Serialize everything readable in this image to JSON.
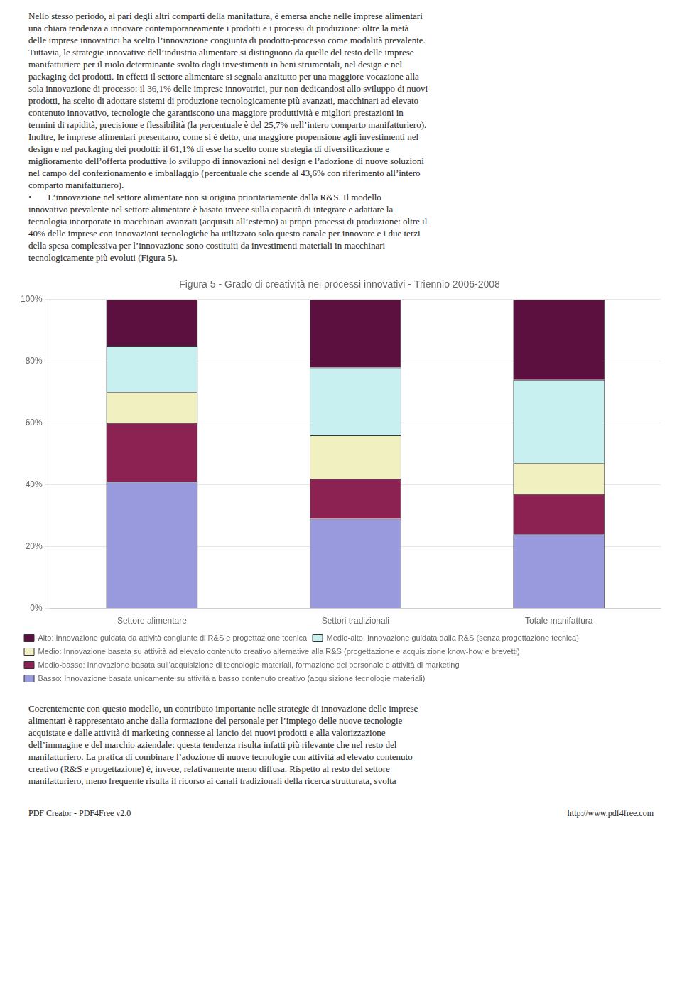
{
  "chart_data": {
    "type": "bar",
    "stacked": true,
    "title": "Figura 5 - Grado di creatività nei processi innovativi - Triennio 2006-2008",
    "categories": [
      "Settore alimentare",
      "Settori tradizionali",
      "Totale manifattura"
    ],
    "series": [
      {
        "name": "Alto: Innovazione guidata da attività congiunte di R&S e progettazione tecnica",
        "color": "#5C1040",
        "values": [
          15,
          22,
          26
        ]
      },
      {
        "name": "Medio-alto: Innovazione guidata dalla R&S (senza progettazione tecnica)",
        "color": "#C8F0F0",
        "values": [
          15,
          22,
          27
        ]
      },
      {
        "name": "Medio: Innovazione basata su attività ad elevato contenuto creativo alternative alla R&S (progettazione e acquisizione know-how e brevetti)",
        "color": "#F0F0C0",
        "values": [
          10,
          14,
          10
        ]
      },
      {
        "name": "Medio-basso: Innovazione basata sull’acquisizione di tecnologie materiali, formazione del personale e attività di marketing",
        "color": "#8B2252",
        "values": [
          19,
          13,
          13
        ]
      },
      {
        "name": "Basso: Innovazione basata unicamente su attività a basso contenuto creativo (acquisizione tecnologie materiali)",
        "color": "#9999DD",
        "values": [
          41,
          29,
          24
        ]
      }
    ],
    "ylim": [
      0,
      100
    ],
    "yticks": [
      {
        "value": 0,
        "label": "0%"
      },
      {
        "value": 20,
        "label": "20%"
      },
      {
        "value": 40,
        "label": "40%"
      },
      {
        "value": 60,
        "label": "60%"
      },
      {
        "value": 80,
        "label": "80%"
      },
      {
        "value": 100,
        "label": "100%"
      }
    ],
    "grid": true,
    "legend": "bottom"
  },
  "text_above": [
    "Nello stesso periodo, al pari degli altri comparti della manifattura, è emersa anche nelle imprese alimentari",
    "una chiara tendenza a innovare contemporaneamente i prodotti e i processi di produzione: oltre la metà",
    "delle imprese innovatrici ha scelto l’innovazione congiunta di prodotto-processo come modalità prevalente.",
    "Tuttavia, le strategie innovative dell’industria alimentare si distinguono da quelle del resto delle imprese",
    "manifatturiere per il ruolo determinante svolto dagli investimenti in beni strumentali, nel design e nel",
    "packaging dei prodotti. In effetti il settore alimentare si segnala anzitutto per una maggiore vocazione alla",
    "sola innovazione di processo: il 36,1% delle imprese innovatrici, pur non dedicandosi allo sviluppo di nuovi",
    "prodotti, ha scelto di adottare sistemi di produzione tecnologicamente più avanzati, macchinari ad elevato",
    "contenuto innovativo, tecnologie che garantiscono una maggiore produttività e migliori prestazioni in",
    "termini di rapidità, precisione e flessibilità (la percentuale è del 25,7% nell’intero comparto manifatturiero).",
    "Inoltre, le imprese alimentari presentano, come si è detto, una maggiore propensione agli investimenti nel",
    "design e nel packaging dei prodotti: il 61,1% di esse ha scelto come strategia di diversificazione e",
    "miglioramento dell’offerta produttiva lo sviluppo di innovazioni nel design e l’adozione di nuove soluzioni",
    "nel campo del confezionamento e imballaggio (percentuale che scende al 43,6% con riferimento all’intero",
    "comparto manifatturiero).",
    "•       L’innovazione nel settore alimentare non si origina prioritariamente dalla R&S. Il modello",
    "innovativo prevalente nel settore alimentare è basato invece sulla capacità di integrare e adattare la",
    "tecnologia incorporate in macchinari avanzati (acquisiti all’esterno) ai propri processi di produzione: oltre il",
    "40% delle imprese con innovazioni tecnologiche ha utilizzato solo questo canale per innovare e i due terzi",
    "della spesa complessiva per l’innovazione sono costituiti da investimenti materiali in macchinari",
    "tecnologicamente più evoluti (Figura 5)."
  ],
  "text_below": [
    "Coerentemente con questo modello, un contributo importante nelle strategie di innovazione delle imprese",
    "alimentari è rappresentato anche dalla formazione del personale per l’impiego delle nuove tecnologie",
    "acquistate e dalle attività di marketing connesse al lancio dei nuovi prodotti e alla valorizzazione",
    "dell’immagine e del marchio aziendale: questa tendenza risulta infatti più rilevante che nel resto del",
    "manifatturiero. La pratica di combinare l’adozione di nuove tecnologie con attività ad elevato contenuto",
    "creativo (R&S e progettazione) è, invece, relativamente meno diffusa. Rispetto al resto del settore",
    "manifatturiero, meno frequente risulta il ricorso ai canali tradizionali della ricerca strutturata, svolta"
  ],
  "footer": [
    "PDF Creator - PDF4Free v2.0",
    "http://www.pdf4free.com"
  ]
}
